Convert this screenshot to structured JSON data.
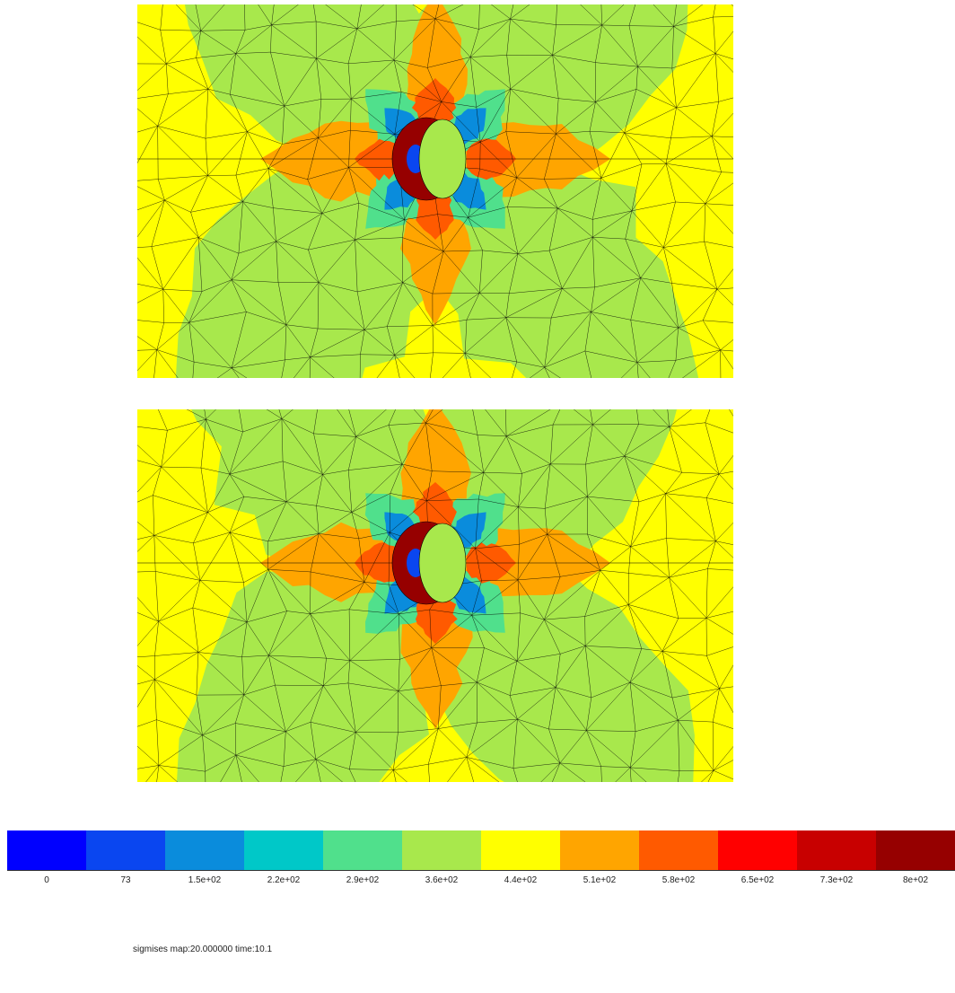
{
  "colorbar": {
    "labels": [
      "0",
      "73",
      "1.5e+02",
      "2.2e+02",
      "2.9e+02",
      "3.6e+02",
      "4.4e+02",
      "5.1e+02",
      "5.8e+02",
      "6.5e+02",
      "7.3e+02",
      "8e+02"
    ],
    "colors": [
      "#0000ff",
      "#0a46f0",
      "#0a8cdc",
      "#00c8c8",
      "#50e08c",
      "#a8e84c",
      "#ffff00",
      "#ffa500",
      "#ff5a00",
      "#ff0000",
      "#c80000",
      "#960000"
    ]
  },
  "caption": "sigmises map:20.000000  time:10.1"
}
